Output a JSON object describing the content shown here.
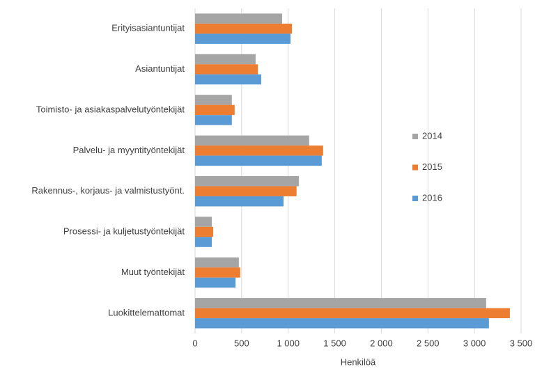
{
  "chart_data": {
    "type": "barh",
    "categories": [
      "Erityisasiantuntijat",
      "Asiantuntijat",
      "Toimisto- ja asiakaspalvelutyöntekijät",
      "Palvelu- ja myyntityöntekijät",
      "Rakennus-, korjaus- ja valmistustyönt.",
      "Prosessi- ja kuljetustyöntekijät",
      "Muut työntekijät",
      "Luokittelemattomat"
    ],
    "series": [
      {
        "name": "2014",
        "color": "#a5a5a5",
        "values": [
          935,
          650,
          395,
          1225,
          1115,
          180,
          470,
          3125
        ]
      },
      {
        "name": "2015",
        "color": "#ed7d31",
        "values": [
          1040,
          675,
          425,
          1375,
          1090,
          195,
          485,
          3380
        ]
      },
      {
        "name": "2016",
        "color": "#5b9bd5",
        "values": [
          1025,
          710,
          395,
          1360,
          950,
          180,
          435,
          3155
        ]
      }
    ],
    "xlabel": "Henkilöä",
    "xlim": [
      0,
      3500
    ],
    "xticks": [
      0,
      500,
      {
        "value": 1000,
        "label": "1 000"
      },
      {
        "value": 1500,
        "label": "1 500"
      },
      {
        "value": 2000,
        "label": "2 000"
      },
      {
        "value": 2500,
        "label": "2 500"
      },
      {
        "value": 3000,
        "label": "3 000"
      },
      {
        "value": 3500,
        "label": "3 500"
      }
    ],
    "grid": true,
    "legend": "right"
  }
}
